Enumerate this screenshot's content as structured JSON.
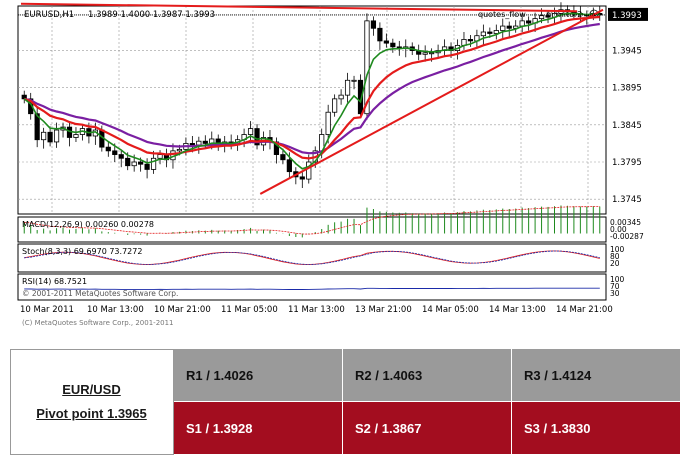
{
  "chart_data": {
    "type": "candlestick",
    "symbol_header": "EURUSD,H1",
    "ohlc_header": "1.3989 1.4000 1.3987 1.3993",
    "current_price_label": "1.3993",
    "indicator_labels": [
      "quotes_flow",
      "monitor2"
    ],
    "y_ticks": [
      "1.3993",
      "1.3945",
      "1.3895",
      "1.3845",
      "1.3795",
      "1.3745"
    ],
    "x_ticks": [
      "10 Mar 2011",
      "10 Mar 13:00",
      "10 Mar 21:00",
      "11 Mar 05:00",
      "11 Mar 13:00",
      "13 Mar 21:00",
      "14 Mar 05:00",
      "14 Mar 13:00",
      "14 Mar 21:00"
    ],
    "ylim": [
      1.3725,
      1.4005
    ],
    "grid": true,
    "closes": [
      1.388,
      1.386,
      1.3825,
      1.3835,
      1.3822,
      1.3838,
      1.3842,
      1.3828,
      1.3832,
      1.384,
      1.383,
      1.3838,
      1.3815,
      1.381,
      1.3805,
      1.38,
      1.379,
      1.3795,
      1.3792,
      1.3785,
      1.38,
      1.3805,
      1.3798,
      1.381,
      1.3812,
      1.382,
      1.3818,
      1.3823,
      1.382,
      1.3826,
      1.382,
      1.3822,
      1.3818,
      1.3825,
      1.3832,
      1.384,
      1.3818,
      1.3828,
      1.3822,
      1.3805,
      1.3798,
      1.3782,
      1.3775,
      1.3772,
      1.3795,
      1.381,
      1.3832,
      1.3862,
      1.388,
      1.3885,
      1.3905,
      1.3905,
      1.386,
      1.3985,
      1.3975,
      1.3958,
      1.3955,
      1.395,
      1.3948,
      1.395,
      1.3945,
      1.394,
      1.3942,
      1.3942,
      1.3945,
      1.395,
      1.3945,
      1.3952,
      1.396,
      1.3958,
      1.3965,
      1.397,
      1.3968,
      1.3972,
      1.3978,
      1.3975,
      1.3978,
      1.3985,
      1.3982,
      1.3988,
      1.3992,
      1.399,
      1.3995,
      1.4,
      1.3998,
      1.3995,
      1.3993,
      1.3992,
      1.3995,
      1.3993
    ],
    "subwindows": [
      {
        "label": "MACD(12,26,9) 0.00260 0.00278",
        "scale": [
          "0.00345",
          "0.00",
          "-0.00287"
        ]
      },
      {
        "label": "Stoch(8,3,3) 69.6970 73.7272",
        "scale": [
          "100",
          "80",
          "20"
        ]
      },
      {
        "label": "RSI(14) 68.7521",
        "scale": [
          "100",
          "70",
          "30"
        ]
      }
    ],
    "copyright": "(C) MetaQuotes Software Corp., 2001-2011",
    "copyright_overlay": "© 2001-2011 MetaQuotes Software Corp."
  },
  "pivot": {
    "pair": "EUR/USD",
    "pivot_point": "Pivot point 1.3965",
    "resistance": [
      "R1 / 1.4026",
      "R2 / 1.4063",
      "R3 / 1.4124"
    ],
    "support": [
      "S1 / 1.3928",
      "S2 / 1.3867",
      "S3 / 1.3830"
    ]
  }
}
